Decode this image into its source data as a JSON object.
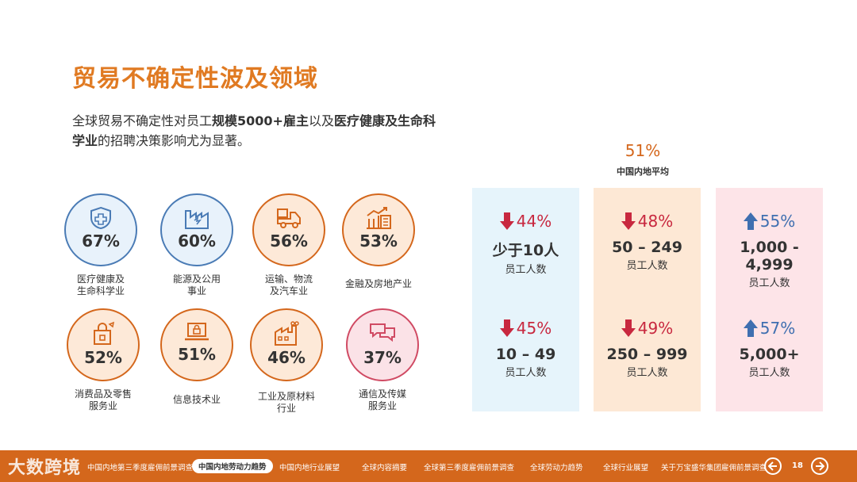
{
  "title": "贸易不确定性波及领域",
  "subtitle": {
    "p1": "全球贸易不确定性对员工",
    "b1": "规模5000+雇主",
    "p2": "以及",
    "b2": "医疗健康及生命科学业",
    "p3": "的招聘决策影响尤为显著。"
  },
  "sectors": [
    {
      "pct": "67%",
      "label": "医疗健康及\n生命科学业",
      "icon": "health-shield-icon",
      "color": "blue"
    },
    {
      "pct": "60%",
      "label": "能源及公用\n事业",
      "icon": "energy-factory-icon",
      "color": "blue"
    },
    {
      "pct": "56%",
      "label": "运输、物流\n及汽车业",
      "icon": "delivery-truck-icon",
      "color": "orange"
    },
    {
      "pct": "53%",
      "label": "金融及房地产业",
      "icon": "finance-building-icon",
      "color": "orange"
    },
    {
      "pct": "52%",
      "label": "消费品及零售\n服务业",
      "icon": "shopping-bag-icon",
      "color": "orange"
    },
    {
      "pct": "51%",
      "label": "信息技术业",
      "icon": "laptop-lock-icon",
      "color": "orange"
    },
    {
      "pct": "46%",
      "label": "工业及原材料\n行业",
      "icon": "industrial-plant-icon",
      "color": "orange"
    },
    {
      "pct": "37%",
      "label": "通信及传媒\n服务业",
      "icon": "chat-bubbles-icon",
      "color": "pink"
    }
  ],
  "average": {
    "value": "51%",
    "label": "中国内地平均"
  },
  "company_sizes": [
    {
      "delta": "44%",
      "direction": "down",
      "size": "少于10人",
      "unit": "员工人数"
    },
    {
      "delta": "45%",
      "direction": "down",
      "size": "10 – 49",
      "unit": "员工人数"
    },
    {
      "delta": "48%",
      "direction": "down",
      "size": "50 – 249",
      "unit": "员工人数"
    },
    {
      "delta": "49%",
      "direction": "down",
      "size": "250 – 999",
      "unit": "员工人数"
    },
    {
      "delta": "55%",
      "direction": "up",
      "size": "1,000 - 4,999",
      "unit": "员工人数"
    },
    {
      "delta": "57%",
      "direction": "up",
      "size": "5,000+",
      "unit": "员工人数"
    }
  ],
  "footer": {
    "logo": "大数跨境",
    "nav": [
      "中国内地第三季度雇佣前景调查",
      "中国内地劳动力趋势",
      "中国内地行业展望",
      "全球内容摘要",
      "全球第三季度雇佣前景调查",
      "全球劳动力趋势",
      "全球行业展望",
      "关于万宝盛华集团雇佣前景调查"
    ],
    "page": "18"
  },
  "colors": {
    "accent": "#e07a22",
    "blue": "#4a7bb5",
    "orange": "#d4671c",
    "pink": "#d04a63",
    "down": "#c8283f",
    "up": "#3f6fb0"
  }
}
